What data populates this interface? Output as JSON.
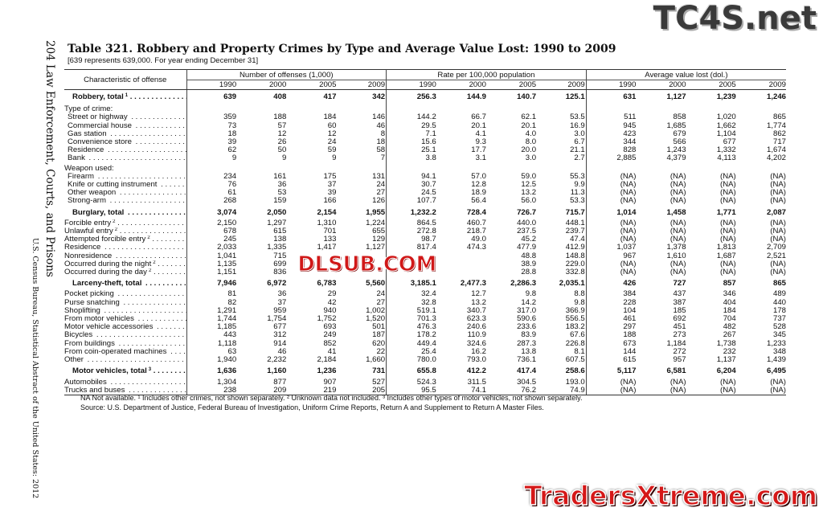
{
  "page": {
    "side_header": "204   Law Enforcement, Courts, and Prisons",
    "side_footer": "U.S. Census Bureau, Statistical Abstract of the United States: 2012",
    "title": "Table 321. Robbery and Property Crimes by Type and Average Value Lost: 1990 to 2009",
    "subtitle": "[639 represents 639,000. For year ending December 31]"
  },
  "table": {
    "stub_header": "Characteristic of offense",
    "groups": [
      "Number of offenses (1,000)",
      "Rate per 100,000 population",
      "Average value lost (dol.)"
    ],
    "years": [
      "1990",
      "2000",
      "2005",
      "2009"
    ],
    "rows": [
      {
        "kind": "total",
        "label": "Robbery, total",
        "sup": "1",
        "v": [
          "639",
          "408",
          "417",
          "342",
          "256.3",
          "144.9",
          "140.7",
          "125.1",
          "631",
          "1,127",
          "1,239",
          "1,246"
        ]
      },
      {
        "kind": "head",
        "label": "Type of crime:",
        "v": []
      },
      {
        "kind": "item",
        "label": "Street or highway",
        "v": [
          "359",
          "188",
          "184",
          "146",
          "144.2",
          "66.7",
          "62.1",
          "53.5",
          "511",
          "858",
          "1,020",
          "865"
        ]
      },
      {
        "kind": "item",
        "label": "Commercial house",
        "v": [
          "73",
          "57",
          "60",
          "46",
          "29.5",
          "20.1",
          "20.1",
          "16.9",
          "945",
          "1,685",
          "1,662",
          "1,774"
        ]
      },
      {
        "kind": "item",
        "label": "Gas station",
        "v": [
          "18",
          "12",
          "12",
          "8",
          "7.1",
          "4.1",
          "4.0",
          "3.0",
          "423",
          "679",
          "1,104",
          "862"
        ]
      },
      {
        "kind": "item",
        "label": "Convenience store",
        "v": [
          "39",
          "26",
          "24",
          "18",
          "15.6",
          "9.3",
          "8.0",
          "6.7",
          "344",
          "566",
          "677",
          "717"
        ]
      },
      {
        "kind": "item",
        "label": "Residence",
        "v": [
          "62",
          "50",
          "59",
          "58",
          "25.1",
          "17.7",
          "20.0",
          "21.1",
          "828",
          "1,243",
          "1,332",
          "1,674"
        ]
      },
      {
        "kind": "item",
        "label": "Bank",
        "v": [
          "9",
          "9",
          "9",
          "7",
          "3.8",
          "3.1",
          "3.0",
          "2.7",
          "2,885",
          "4,379",
          "4,113",
          "4,202"
        ]
      },
      {
        "kind": "head",
        "label": "Weapon used:",
        "v": []
      },
      {
        "kind": "item",
        "label": "Firearm",
        "v": [
          "234",
          "161",
          "175",
          "131",
          "94.1",
          "57.0",
          "59.0",
          "55.3",
          "(NA)",
          "(NA)",
          "(NA)",
          "(NA)"
        ]
      },
      {
        "kind": "item",
        "label": "Knife or cutting instrument",
        "v": [
          "76",
          "36",
          "37",
          "24",
          "30.7",
          "12.8",
          "12.5",
          "9.9",
          "(NA)",
          "(NA)",
          "(NA)",
          "(NA)"
        ]
      },
      {
        "kind": "item",
        "label": "Other weapon",
        "v": [
          "61",
          "53",
          "39",
          "27",
          "24.5",
          "18.9",
          "13.2",
          "11.3",
          "(NA)",
          "(NA)",
          "(NA)",
          "(NA)"
        ]
      },
      {
        "kind": "item",
        "label": "Strong-arm",
        "v": [
          "268",
          "159",
          "166",
          "126",
          "107.7",
          "56.4",
          "56.0",
          "53.3",
          "(NA)",
          "(NA)",
          "(NA)",
          "(NA)"
        ]
      },
      {
        "kind": "total",
        "label": "Burglary, total",
        "v": [
          "3,074",
          "2,050",
          "2,154",
          "1,955",
          "1,232.2",
          "728.4",
          "726.7",
          "715.7",
          "1,014",
          "1,458",
          "1,771",
          "2,087"
        ]
      },
      {
        "kind": "flat",
        "label": "Forcible entry",
        "sup": "2",
        "v": [
          "2,150",
          "1,297",
          "1,310",
          "1,224",
          "864.5",
          "460.7",
          "440.0",
          "448.1",
          "(NA)",
          "(NA)",
          "(NA)",
          "(NA)"
        ]
      },
      {
        "kind": "flat",
        "label": "Unlawful entry",
        "sup": "2",
        "v": [
          "678",
          "615",
          "701",
          "655",
          "272.8",
          "218.7",
          "237.5",
          "239.7",
          "(NA)",
          "(NA)",
          "(NA)",
          "(NA)"
        ]
      },
      {
        "kind": "flat",
        "label": "Attempted forcible entry",
        "sup": "2",
        "v": [
          "245",
          "138",
          "133",
          "129",
          "98.7",
          "49.0",
          "45.2",
          "47.4",
          "(NA)",
          "(NA)",
          "(NA)",
          "(NA)"
        ]
      },
      {
        "kind": "flat",
        "label": "Residence",
        "v": [
          "2,033",
          "1,335",
          "1,417",
          "1,127",
          "817.4",
          "474.3",
          "477.9",
          "412.9",
          "1,037",
          "1,378",
          "1,813",
          "2,709"
        ]
      },
      {
        "kind": "flat",
        "label": "Nonresidence",
        "v": [
          "1,041",
          "715",
          "",
          "",
          "",
          "",
          "48.8",
          "148.8",
          "967",
          "1,610",
          "1,687",
          "2,521"
        ]
      },
      {
        "kind": "flat",
        "label": "Occurred during the night",
        "sup": "2",
        "v": [
          "1,135",
          "699",
          "",
          "",
          "",
          "",
          "38.9",
          "229.0",
          "(NA)",
          "(NA)",
          "(NA)",
          "(NA)"
        ]
      },
      {
        "kind": "flat",
        "label": "Occurred during the day",
        "sup": "2",
        "v": [
          "1,151",
          "836",
          "",
          "",
          "",
          "",
          "28.8",
          "332.8",
          "(NA)",
          "(NA)",
          "(NA)",
          "(NA)"
        ]
      },
      {
        "kind": "total",
        "label": "Larceny-theft, total",
        "v": [
          "7,946",
          "6,972",
          "6,783",
          "5,560",
          "3,185.1",
          "2,477.3",
          "2,286.3",
          "2,035.1",
          "426",
          "727",
          "857",
          "865"
        ]
      },
      {
        "kind": "flat",
        "label": "Pocket picking",
        "v": [
          "81",
          "36",
          "29",
          "24",
          "32.4",
          "12.7",
          "9.8",
          "8.8",
          "384",
          "437",
          "346",
          "489"
        ]
      },
      {
        "kind": "flat",
        "label": "Purse snatching",
        "v": [
          "82",
          "37",
          "42",
          "27",
          "32.8",
          "13.2",
          "14.2",
          "9.8",
          "228",
          "387",
          "404",
          "440"
        ]
      },
      {
        "kind": "flat",
        "label": "Shoplifting",
        "v": [
          "1,291",
          "959",
          "940",
          "1,002",
          "519.1",
          "340.7",
          "317.0",
          "366.9",
          "104",
          "185",
          "184",
          "178"
        ]
      },
      {
        "kind": "flat",
        "label": "From motor vehicles",
        "v": [
          "1,744",
          "1,754",
          "1,752",
          "1,520",
          "701.3",
          "623.3",
          "590.6",
          "556.5",
          "461",
          "692",
          "704",
          "737"
        ]
      },
      {
        "kind": "flat",
        "label": "Motor vehicle accessories",
        "v": [
          "1,185",
          "677",
          "693",
          "501",
          "476.3",
          "240.6",
          "233.6",
          "183.2",
          "297",
          "451",
          "482",
          "528"
        ]
      },
      {
        "kind": "flat",
        "label": "Bicycles",
        "v": [
          "443",
          "312",
          "249",
          "187",
          "178.2",
          "110.9",
          "83.9",
          "67.6",
          "188",
          "273",
          "267",
          "345"
        ]
      },
      {
        "kind": "flat",
        "label": "From buildings",
        "v": [
          "1,118",
          "914",
          "852",
          "620",
          "449.4",
          "324.6",
          "287.3",
          "226.8",
          "673",
          "1,184",
          "1,738",
          "1,233"
        ]
      },
      {
        "kind": "flat",
        "label": "From coin-operated machines",
        "v": [
          "63",
          "46",
          "41",
          "22",
          "25.4",
          "16.2",
          "13.8",
          "8.1",
          "144",
          "272",
          "232",
          "348"
        ]
      },
      {
        "kind": "flat",
        "label": "Other",
        "v": [
          "1,940",
          "2,232",
          "2,184",
          "1,660",
          "780.0",
          "793.0",
          "736.1",
          "607.5",
          "615",
          "957",
          "1,137",
          "1,439"
        ]
      },
      {
        "kind": "total",
        "label": "Motor vehicles, total",
        "sup": "3",
        "v": [
          "1,636",
          "1,160",
          "1,236",
          "731",
          "655.8",
          "412.2",
          "417.4",
          "258.6",
          "5,117",
          "6,581",
          "6,204",
          "6,495"
        ]
      },
      {
        "kind": "flat",
        "label": "Automobiles",
        "v": [
          "1,304",
          "877",
          "907",
          "527",
          "524.3",
          "311.5",
          "304.5",
          "193.0",
          "(NA)",
          "(NA)",
          "(NA)",
          "(NA)"
        ]
      },
      {
        "kind": "flat",
        "label": "Trucks and buses",
        "v": [
          "238",
          "209",
          "219",
          "205",
          "95.5",
          "74.1",
          "76.2",
          "74.9",
          "(NA)",
          "(NA)",
          "(NA)",
          "(NA)"
        ]
      }
    ]
  },
  "notes": {
    "line1": "NA  Not available. ¹ Includes other crimes, not shown separately. ² Unknown data not included. ³ Includes other types of motor vehicles, not shown separately.",
    "line2": "Source: U.S. Department of Justice, Federal Bureau of Investigation, Uniform Crime Reports, Return A and Supplement to Return A Master Files."
  },
  "watermarks": {
    "top_right": "TC4S.net",
    "center": "DLSUB.COM",
    "bottom_right": "TradersXtreme.com"
  }
}
